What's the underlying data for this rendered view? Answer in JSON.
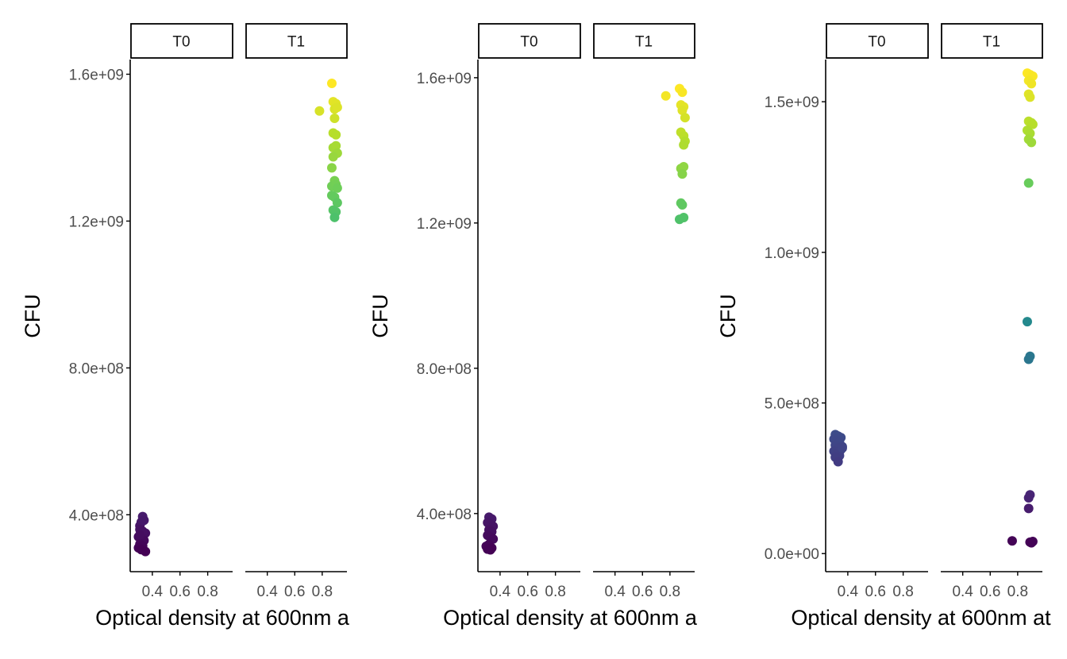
{
  "chart_data": [
    {
      "type": "scatter",
      "ylabel": "CFU",
      "xlabel": "Optical density at 600nm a",
      "ylim": [
        245000000,
        1640000000
      ],
      "yticks": [
        400000000,
        800000000,
        1200000000,
        1600000000
      ],
      "ytick_labels": [
        "4.0e+08",
        "8.0e+08",
        "1.2e+09",
        "1.6e+09"
      ],
      "xlim": [
        0.24,
        0.98
      ],
      "xticks": [
        0.4,
        0.6,
        0.8
      ],
      "xtick_labels": [
        "0.4",
        "0.6",
        "0.8"
      ],
      "facets": [
        {
          "label": "T0",
          "points": [
            [
              0.31,
              370000000.0
            ],
            [
              0.32,
              380000000.0
            ],
            [
              0.33,
              395000000.0
            ],
            [
              0.34,
              385000000.0
            ],
            [
              0.31,
              360000000.0
            ],
            [
              0.33,
              350000000.0
            ],
            [
              0.35,
              350000000.0
            ],
            [
              0.3,
              340000000.0
            ],
            [
              0.32,
              330000000.0
            ],
            [
              0.34,
              330000000.0
            ],
            [
              0.31,
              320000000.0
            ],
            [
              0.33,
              315000000.0
            ],
            [
              0.3,
              310000000.0
            ],
            [
              0.32,
              305000000.0
            ],
            [
              0.35,
              300000000.0
            ],
            [
              0.33,
              355000000.0
            ],
            [
              0.31,
              345000000.0
            ]
          ],
          "color_values": [
            370000000.0,
            380000000.0,
            395000000.0,
            385000000.0,
            360000000.0,
            350000000.0,
            350000000.0,
            340000000.0,
            330000000.0,
            330000000.0,
            320000000.0,
            315000000.0,
            310000000.0,
            305000000.0,
            300000000.0,
            355000000.0,
            345000000.0
          ]
        },
        {
          "label": "T1",
          "points": [
            [
              0.87,
              1575000000.0
            ],
            [
              0.78,
              1500000000.0
            ],
            [
              0.88,
              1525000000.0
            ],
            [
              0.9,
              1520000000.0
            ],
            [
              0.89,
              1505000000.0
            ],
            [
              0.91,
              1510000000.0
            ],
            [
              0.89,
              1480000000.0
            ],
            [
              0.88,
              1440000000.0
            ],
            [
              0.9,
              1435000000.0
            ],
            [
              0.88,
              1400000000.0
            ],
            [
              0.9,
              1405000000.0
            ],
            [
              0.91,
              1385000000.0
            ],
            [
              0.88,
              1375000000.0
            ],
            [
              0.87,
              1345000000.0
            ],
            [
              0.89,
              1310000000.0
            ],
            [
              0.87,
              1295000000.0
            ],
            [
              0.9,
              1300000000.0
            ],
            [
              0.91,
              1290000000.0
            ],
            [
              0.87,
              1270000000.0
            ],
            [
              0.89,
              1265000000.0
            ],
            [
              0.91,
              1250000000.0
            ],
            [
              0.88,
              1230000000.0
            ],
            [
              0.9,
              1225000000.0
            ],
            [
              0.89,
              1210000000.0
            ]
          ],
          "color_values": [
            1575000000.0,
            1500000000.0,
            1525000000.0,
            1520000000.0,
            1505000000.0,
            1510000000.0,
            1480000000.0,
            1440000000.0,
            1435000000.0,
            1400000000.0,
            1405000000.0,
            1385000000.0,
            1375000000.0,
            1345000000.0,
            1310000000.0,
            1295000000.0,
            1300000000.0,
            1290000000.0,
            1270000000.0,
            1265000000.0,
            1250000000.0,
            1230000000.0,
            1225000000.0,
            1210000000.0
          ]
        }
      ]
    },
    {
      "type": "scatter",
      "ylabel": "CFU",
      "xlabel": "Optical density at 600nm a",
      "ylim": [
        240000000,
        1650000000
      ],
      "yticks": [
        400000000,
        800000000,
        1200000000,
        1600000000
      ],
      "ytick_labels": [
        "4.0e+08",
        "8.0e+08",
        "1.2e+09",
        "1.6e+09"
      ],
      "xlim": [
        0.24,
        0.98
      ],
      "xticks": [
        0.4,
        0.6,
        0.8
      ],
      "xtick_labels": [
        "0.4",
        "0.6",
        "0.8"
      ],
      "facets": [
        {
          "label": "T0",
          "points": [
            [
              0.32,
              390000000.0
            ],
            [
              0.34,
              385000000.0
            ],
            [
              0.31,
              375000000.0
            ],
            [
              0.33,
              370000000.0
            ],
            [
              0.35,
              365000000.0
            ],
            [
              0.32,
              355000000.0
            ],
            [
              0.34,
              350000000.0
            ],
            [
              0.31,
              340000000.0
            ],
            [
              0.33,
              335000000.0
            ],
            [
              0.35,
              330000000.0
            ],
            [
              0.32,
              315000000.0
            ],
            [
              0.3,
              310000000.0
            ],
            [
              0.34,
              305000000.0
            ],
            [
              0.33,
              300000000.0
            ],
            [
              0.31,
              302000000.0
            ]
          ],
          "color_values": [
            390000000.0,
            385000000.0,
            375000000.0,
            370000000.0,
            365000000.0,
            355000000.0,
            350000000.0,
            340000000.0,
            335000000.0,
            330000000.0,
            315000000.0,
            310000000.0,
            305000000.0,
            300000000.0,
            302000000.0
          ]
        },
        {
          "label": "T1",
          "points": [
            [
              0.87,
              1570000000.0
            ],
            [
              0.89,
              1560000000.0
            ],
            [
              0.77,
              1550000000.0
            ],
            [
              0.88,
              1525000000.0
            ],
            [
              0.9,
              1520000000.0
            ],
            [
              0.89,
              1510000000.0
            ],
            [
              0.91,
              1490000000.0
            ],
            [
              0.88,
              1450000000.0
            ],
            [
              0.9,
              1440000000.0
            ],
            [
              0.91,
              1425000000.0
            ],
            [
              0.9,
              1415000000.0
            ],
            [
              0.88,
              1350000000.0
            ],
            [
              0.9,
              1355000000.0
            ],
            [
              0.89,
              1335000000.0
            ],
            [
              0.88,
              1255000000.0
            ],
            [
              0.89,
              1250000000.0
            ],
            [
              0.87,
              1210000000.0
            ],
            [
              0.9,
              1215000000.0
            ]
          ],
          "color_values": [
            1570000000.0,
            1560000000.0,
            1550000000.0,
            1525000000.0,
            1520000000.0,
            1510000000.0,
            1490000000.0,
            1450000000.0,
            1440000000.0,
            1425000000.0,
            1415000000.0,
            1350000000.0,
            1355000000.0,
            1335000000.0,
            1255000000.0,
            1250000000.0,
            1210000000.0,
            1215000000.0
          ]
        }
      ]
    },
    {
      "type": "scatter",
      "ylabel": "CFU",
      "xlabel": "Optical density at 600nm at",
      "ylim": [
        -60000000,
        1640000000
      ],
      "yticks": [
        0,
        500000000,
        1000000000,
        1500000000
      ],
      "ytick_labels": [
        "0.0e+00",
        "5.0e+08",
        "1.0e+09",
        "1.5e+09"
      ],
      "xlim": [
        0.24,
        0.98
      ],
      "xticks": [
        0.4,
        0.6,
        0.8
      ],
      "xtick_labels": [
        "0.4",
        "0.6",
        "0.8"
      ],
      "facets": [
        {
          "label": "T0",
          "points": [
            [
              0.31,
              395000000.0
            ],
            [
              0.33,
              390000000.0
            ],
            [
              0.35,
              385000000.0
            ],
            [
              0.3,
              380000000.0
            ],
            [
              0.32,
              375000000.0
            ],
            [
              0.34,
              370000000.0
            ],
            [
              0.31,
              360000000.0
            ],
            [
              0.36,
              355000000.0
            ],
            [
              0.33,
              350000000.0
            ],
            [
              0.35,
              345000000.0
            ],
            [
              0.3,
              340000000.0
            ],
            [
              0.32,
              330000000.0
            ],
            [
              0.34,
              325000000.0
            ],
            [
              0.31,
              320000000.0
            ],
            [
              0.33,
              305000000.0
            ],
            [
              0.36,
              350000000.0
            ]
          ],
          "color_values": [
            395000000.0,
            390000000.0,
            385000000.0,
            380000000.0,
            375000000.0,
            370000000.0,
            360000000.0,
            355000000.0,
            350000000.0,
            345000000.0,
            340000000.0,
            330000000.0,
            325000000.0,
            320000000.0,
            305000000.0,
            350000000.0
          ]
        },
        {
          "label": "T1",
          "points": [
            [
              0.87,
              1595000000.0
            ],
            [
              0.89,
              1590000000.0
            ],
            [
              0.91,
              1585000000.0
            ],
            [
              0.88,
              1570000000.0
            ],
            [
              0.9,
              1560000000.0
            ],
            [
              0.88,
              1525000000.0
            ],
            [
              0.89,
              1515000000.0
            ],
            [
              0.88,
              1435000000.0
            ],
            [
              0.9,
              1430000000.0
            ],
            [
              0.91,
              1425000000.0
            ],
            [
              0.87,
              1405000000.0
            ],
            [
              0.89,
              1395000000.0
            ],
            [
              0.88,
              1375000000.0
            ],
            [
              0.9,
              1365000000.0
            ],
            [
              0.88,
              1230000000.0
            ],
            [
              0.87,
              770000000.0
            ],
            [
              0.89,
              655000000.0
            ],
            [
              0.88,
              645000000.0
            ],
            [
              0.89,
              195000000.0
            ],
            [
              0.88,
              185000000.0
            ],
            [
              0.88,
              150000000.0
            ],
            [
              0.76,
              42000000.0
            ],
            [
              0.89,
              38000000.0
            ],
            [
              0.9,
              36000000.0
            ],
            [
              0.91,
              40000000.0
            ]
          ],
          "color_values": [
            1595000000.0,
            1590000000.0,
            1585000000.0,
            1570000000.0,
            1560000000.0,
            1525000000.0,
            1515000000.0,
            1435000000.0,
            1430000000.0,
            1425000000.0,
            1405000000.0,
            1395000000.0,
            1375000000.0,
            1365000000.0,
            1230000000.0,
            770000000.0,
            655000000.0,
            645000000.0,
            195000000.0,
            185000000.0,
            150000000.0,
            42000000.0,
            38000000.0,
            36000000.0,
            40000000.0
          ]
        }
      ]
    }
  ],
  "colors": {
    "viridis_stops": [
      "#440154",
      "#482878",
      "#3e4989",
      "#31688e",
      "#26828e",
      "#1f9e89",
      "#35b779",
      "#6ece58",
      "#b5de2b",
      "#fde725"
    ],
    "axis": "#000000",
    "tick_label": "#4d4d4d",
    "strip_border": "#000000",
    "strip_fill": "#ffffff"
  }
}
